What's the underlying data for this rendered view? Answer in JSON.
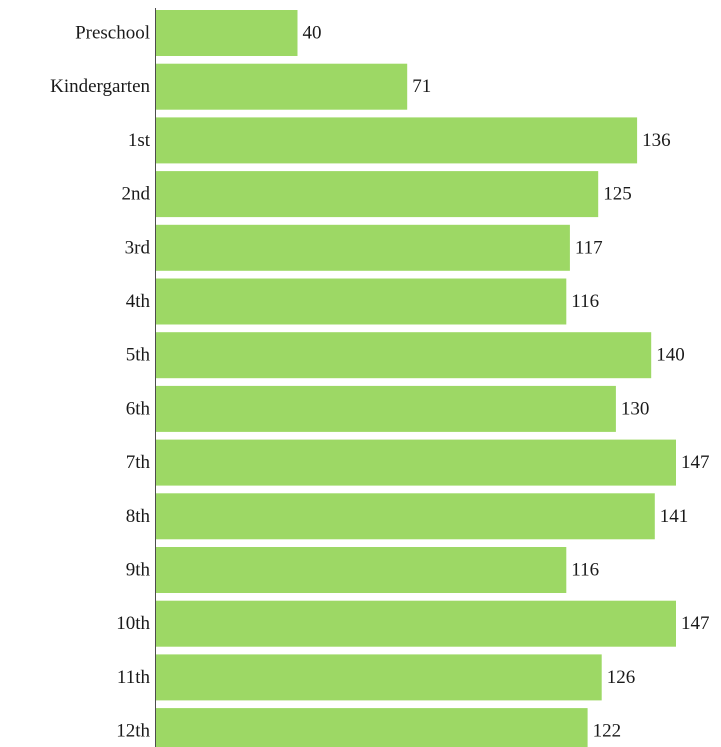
{
  "chart_data": {
    "type": "bar",
    "orientation": "horizontal",
    "categories": [
      "Preschool",
      "Kindergarten",
      "1st",
      "2nd",
      "3rd",
      "4th",
      "5th",
      "6th",
      "7th",
      "8th",
      "9th",
      "10th",
      "11th",
      "12th"
    ],
    "values": [
      40,
      71,
      136,
      125,
      117,
      116,
      140,
      130,
      147,
      141,
      116,
      147,
      126,
      122
    ],
    "title": "",
    "xlabel": "",
    "ylabel": "",
    "xlim": [
      0,
      147
    ],
    "grid": false,
    "legend": "none",
    "bar_color": "#9dd865",
    "text_color": "#1a1a1a"
  }
}
